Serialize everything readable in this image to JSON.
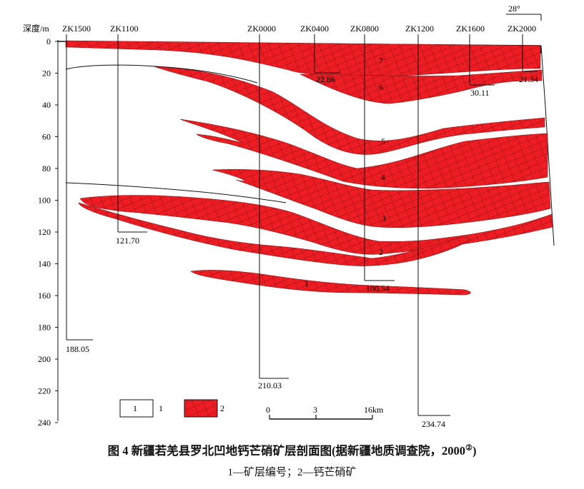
{
  "figure": {
    "caption": "图 4 新疆若羌县罗北凹地钙芒硝矿层剖面图(据新疆地质调查院，2000",
    "caption_note": "②",
    "caption_close": ")",
    "subcaption": "1—矿层编号；2—钙芒硝矿"
  },
  "depth_axis": {
    "label": "深度/m",
    "ticks": [
      "0",
      "20",
      "40",
      "60",
      "80",
      "100",
      "120",
      "140",
      "160",
      "180",
      "200",
      "220",
      "240"
    ]
  },
  "dip_angle": "28°",
  "boreholes": [
    {
      "name": "ZK1500",
      "bottom_depth": "188.05"
    },
    {
      "name": "ZK1100",
      "bottom_depth": "121.70"
    },
    {
      "name": "ZK0000",
      "bottom_depth": "210.03"
    },
    {
      "name": "ZK0400",
      "bottom_depth": "22.86"
    },
    {
      "name": "ZK0800",
      "bottom_depth": "100.54"
    },
    {
      "name": "ZK1200",
      "bottom_depth": "234.74"
    },
    {
      "name": "ZK1600",
      "bottom_depth": "30.11"
    },
    {
      "name": "ZK2000",
      "bottom_depth": "21.34"
    }
  ],
  "ore_layers": [
    "1",
    "2",
    "3",
    "4",
    "5",
    "6",
    "7"
  ],
  "legend": [
    {
      "swatch": "1",
      "label": "1"
    },
    {
      "label": "2",
      "color": "#ee1d24"
    }
  ],
  "scale_bar": {
    "labels": [
      "0",
      "3",
      "16km"
    ]
  },
  "colors": {
    "ore": "#ee1d24",
    "hatch": "#7a1010",
    "line": "#111111"
  }
}
